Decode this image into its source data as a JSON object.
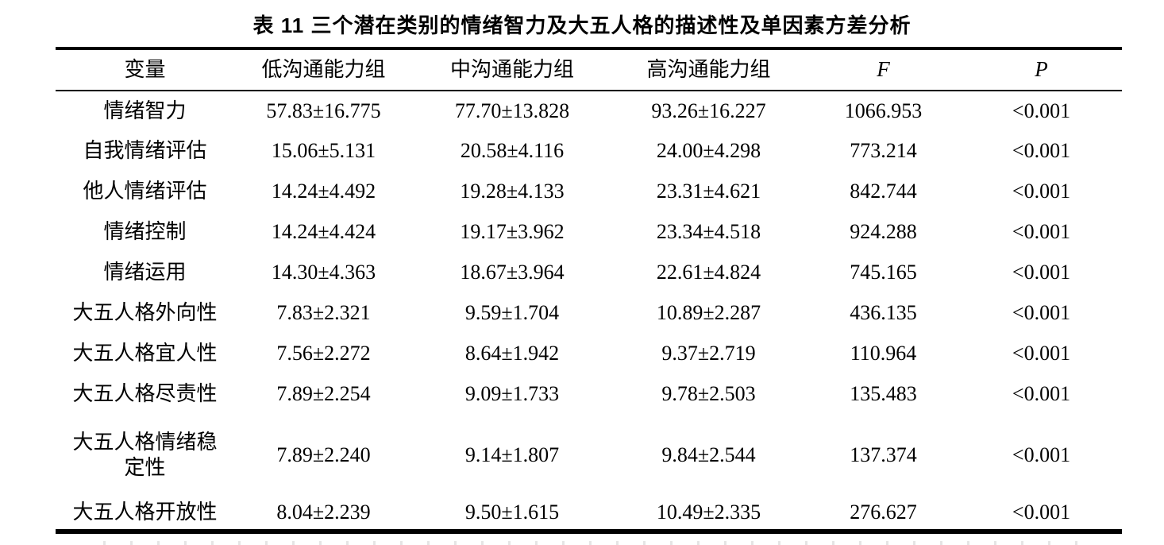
{
  "title": "表 11  三个潜在类别的情绪智力及大五人格的描述性及单因素方差分析",
  "table": {
    "columns": [
      "变量",
      "低沟通能力组",
      "中沟通能力组",
      "高沟通能力组",
      "F",
      "P"
    ],
    "rows": [
      {
        "label": "情绪智力",
        "low": "57.83±16.775",
        "mid": "77.70±13.828",
        "high": "93.26±16.227",
        "f": "1066.953",
        "p": "<0.001"
      },
      {
        "label": "自我情绪评估",
        "low": "15.06±5.131",
        "mid": "20.58±4.116",
        "high": "24.00±4.298",
        "f": "773.214",
        "p": "<0.001"
      },
      {
        "label": "他人情绪评估",
        "low": "14.24±4.492",
        "mid": "19.28±4.133",
        "high": "23.31±4.621",
        "f": "842.744",
        "p": "<0.001"
      },
      {
        "label": "情绪控制",
        "low": "14.24±4.424",
        "mid": "19.17±3.962",
        "high": "23.34±4.518",
        "f": "924.288",
        "p": "<0.001"
      },
      {
        "label": "情绪运用",
        "low": "14.30±4.363",
        "mid": "18.67±3.964",
        "high": "22.61±4.824",
        "f": "745.165",
        "p": "<0.001"
      },
      {
        "label": "大五人格外向性",
        "low": "7.83±2.321",
        "mid": "9.59±1.704",
        "high": "10.89±2.287",
        "f": "436.135",
        "p": "<0.001"
      },
      {
        "label": "大五人格宜人性",
        "low": "7.56±2.272",
        "mid": "8.64±1.942",
        "high": "9.37±2.719",
        "f": "110.964",
        "p": "<0.001"
      },
      {
        "label": "大五人格尽责性",
        "low": "7.89±2.254",
        "mid": "9.09±1.733",
        "high": "9.78±2.503",
        "f": "135.483",
        "p": "<0.001"
      },
      {
        "label": "大五人格情绪稳\n定性",
        "low": "7.89±2.240",
        "mid": "9.14±1.807",
        "high": "9.84±2.544",
        "f": "137.374",
        "p": "<0.001"
      },
      {
        "label": "大五人格开放性",
        "low": "8.04±2.239",
        "mid": "9.50±1.615",
        "high": "10.49±2.335",
        "f": "276.627",
        "p": "<0.001"
      }
    ]
  }
}
